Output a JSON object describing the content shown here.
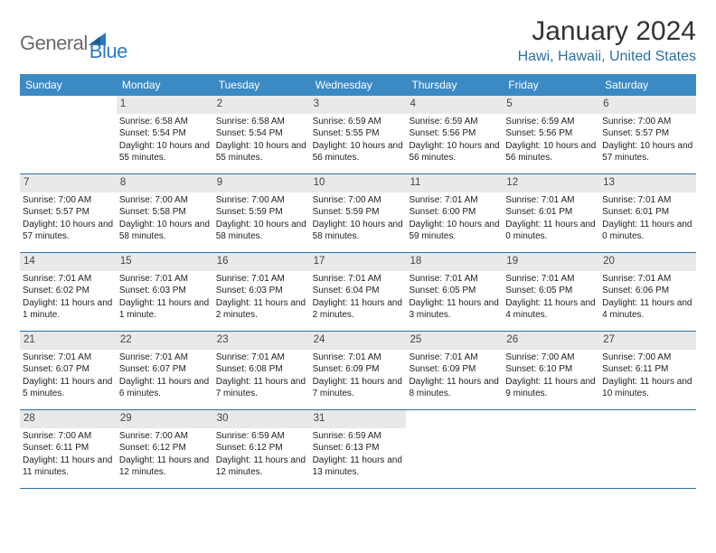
{
  "logo": {
    "word1": "General",
    "word2": "Blue"
  },
  "title": "January 2024",
  "location": "Hawi, Hawaii, United States",
  "weekdays": [
    "Sunday",
    "Monday",
    "Tuesday",
    "Wednesday",
    "Thursday",
    "Friday",
    "Saturday"
  ],
  "colors": {
    "header_bg": "#3b8ac4",
    "location_text": "#2b6fa8",
    "divider": "#2b6fa8",
    "daynum_bg": "#e9e9e9",
    "logo_gray": "#6b6b6b",
    "logo_blue": "#2b78c4"
  },
  "weeks": [
    [
      {
        "n": "",
        "sr": "",
        "ss": "",
        "dl": ""
      },
      {
        "n": "1",
        "sr": "Sunrise: 6:58 AM",
        "ss": "Sunset: 5:54 PM",
        "dl": "Daylight: 10 hours and 55 minutes."
      },
      {
        "n": "2",
        "sr": "Sunrise: 6:58 AM",
        "ss": "Sunset: 5:54 PM",
        "dl": "Daylight: 10 hours and 55 minutes."
      },
      {
        "n": "3",
        "sr": "Sunrise: 6:59 AM",
        "ss": "Sunset: 5:55 PM",
        "dl": "Daylight: 10 hours and 56 minutes."
      },
      {
        "n": "4",
        "sr": "Sunrise: 6:59 AM",
        "ss": "Sunset: 5:56 PM",
        "dl": "Daylight: 10 hours and 56 minutes."
      },
      {
        "n": "5",
        "sr": "Sunrise: 6:59 AM",
        "ss": "Sunset: 5:56 PM",
        "dl": "Daylight: 10 hours and 56 minutes."
      },
      {
        "n": "6",
        "sr": "Sunrise: 7:00 AM",
        "ss": "Sunset: 5:57 PM",
        "dl": "Daylight: 10 hours and 57 minutes."
      }
    ],
    [
      {
        "n": "7",
        "sr": "Sunrise: 7:00 AM",
        "ss": "Sunset: 5:57 PM",
        "dl": "Daylight: 10 hours and 57 minutes."
      },
      {
        "n": "8",
        "sr": "Sunrise: 7:00 AM",
        "ss": "Sunset: 5:58 PM",
        "dl": "Daylight: 10 hours and 58 minutes."
      },
      {
        "n": "9",
        "sr": "Sunrise: 7:00 AM",
        "ss": "Sunset: 5:59 PM",
        "dl": "Daylight: 10 hours and 58 minutes."
      },
      {
        "n": "10",
        "sr": "Sunrise: 7:00 AM",
        "ss": "Sunset: 5:59 PM",
        "dl": "Daylight: 10 hours and 58 minutes."
      },
      {
        "n": "11",
        "sr": "Sunrise: 7:01 AM",
        "ss": "Sunset: 6:00 PM",
        "dl": "Daylight: 10 hours and 59 minutes."
      },
      {
        "n": "12",
        "sr": "Sunrise: 7:01 AM",
        "ss": "Sunset: 6:01 PM",
        "dl": "Daylight: 11 hours and 0 minutes."
      },
      {
        "n": "13",
        "sr": "Sunrise: 7:01 AM",
        "ss": "Sunset: 6:01 PM",
        "dl": "Daylight: 11 hours and 0 minutes."
      }
    ],
    [
      {
        "n": "14",
        "sr": "Sunrise: 7:01 AM",
        "ss": "Sunset: 6:02 PM",
        "dl": "Daylight: 11 hours and 1 minute."
      },
      {
        "n": "15",
        "sr": "Sunrise: 7:01 AM",
        "ss": "Sunset: 6:03 PM",
        "dl": "Daylight: 11 hours and 1 minute."
      },
      {
        "n": "16",
        "sr": "Sunrise: 7:01 AM",
        "ss": "Sunset: 6:03 PM",
        "dl": "Daylight: 11 hours and 2 minutes."
      },
      {
        "n": "17",
        "sr": "Sunrise: 7:01 AM",
        "ss": "Sunset: 6:04 PM",
        "dl": "Daylight: 11 hours and 2 minutes."
      },
      {
        "n": "18",
        "sr": "Sunrise: 7:01 AM",
        "ss": "Sunset: 6:05 PM",
        "dl": "Daylight: 11 hours and 3 minutes."
      },
      {
        "n": "19",
        "sr": "Sunrise: 7:01 AM",
        "ss": "Sunset: 6:05 PM",
        "dl": "Daylight: 11 hours and 4 minutes."
      },
      {
        "n": "20",
        "sr": "Sunrise: 7:01 AM",
        "ss": "Sunset: 6:06 PM",
        "dl": "Daylight: 11 hours and 4 minutes."
      }
    ],
    [
      {
        "n": "21",
        "sr": "Sunrise: 7:01 AM",
        "ss": "Sunset: 6:07 PM",
        "dl": "Daylight: 11 hours and 5 minutes."
      },
      {
        "n": "22",
        "sr": "Sunrise: 7:01 AM",
        "ss": "Sunset: 6:07 PM",
        "dl": "Daylight: 11 hours and 6 minutes."
      },
      {
        "n": "23",
        "sr": "Sunrise: 7:01 AM",
        "ss": "Sunset: 6:08 PM",
        "dl": "Daylight: 11 hours and 7 minutes."
      },
      {
        "n": "24",
        "sr": "Sunrise: 7:01 AM",
        "ss": "Sunset: 6:09 PM",
        "dl": "Daylight: 11 hours and 7 minutes."
      },
      {
        "n": "25",
        "sr": "Sunrise: 7:01 AM",
        "ss": "Sunset: 6:09 PM",
        "dl": "Daylight: 11 hours and 8 minutes."
      },
      {
        "n": "26",
        "sr": "Sunrise: 7:00 AM",
        "ss": "Sunset: 6:10 PM",
        "dl": "Daylight: 11 hours and 9 minutes."
      },
      {
        "n": "27",
        "sr": "Sunrise: 7:00 AM",
        "ss": "Sunset: 6:11 PM",
        "dl": "Daylight: 11 hours and 10 minutes."
      }
    ],
    [
      {
        "n": "28",
        "sr": "Sunrise: 7:00 AM",
        "ss": "Sunset: 6:11 PM",
        "dl": "Daylight: 11 hours and 11 minutes."
      },
      {
        "n": "29",
        "sr": "Sunrise: 7:00 AM",
        "ss": "Sunset: 6:12 PM",
        "dl": "Daylight: 11 hours and 12 minutes."
      },
      {
        "n": "30",
        "sr": "Sunrise: 6:59 AM",
        "ss": "Sunset: 6:12 PM",
        "dl": "Daylight: 11 hours and 12 minutes."
      },
      {
        "n": "31",
        "sr": "Sunrise: 6:59 AM",
        "ss": "Sunset: 6:13 PM",
        "dl": "Daylight: 11 hours and 13 minutes."
      },
      {
        "n": "",
        "sr": "",
        "ss": "",
        "dl": ""
      },
      {
        "n": "",
        "sr": "",
        "ss": "",
        "dl": ""
      },
      {
        "n": "",
        "sr": "",
        "ss": "",
        "dl": ""
      }
    ]
  ]
}
